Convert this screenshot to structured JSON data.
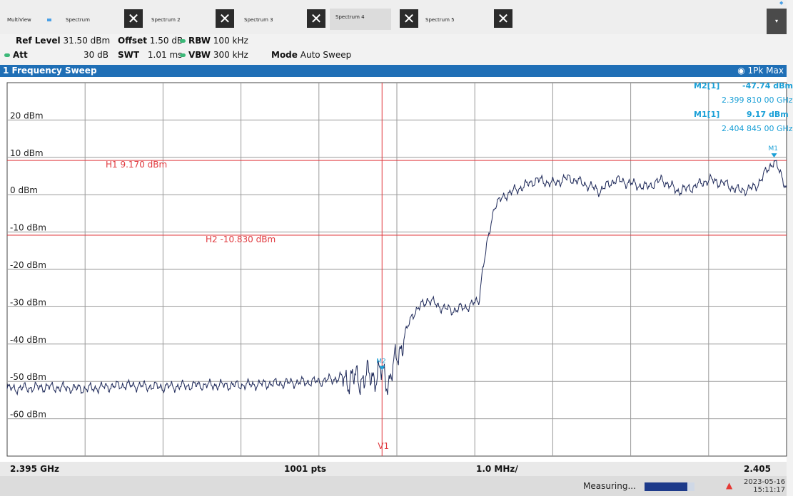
{
  "tabs": {
    "multiview": "MultiView",
    "items": [
      {
        "label": "Spectrum"
      },
      {
        "label": "Spectrum 2"
      },
      {
        "label": "Spectrum 3"
      },
      {
        "label": "Spectrum 4"
      },
      {
        "label": "Spectrum 5"
      }
    ],
    "close_glyph": "✕",
    "dropdown_glyph": "▾"
  },
  "settings": {
    "ref_level_label": "Ref Level",
    "ref_level_value": "31.50 dBm",
    "offset_label": "Offset",
    "offset_value": "1.50 dB",
    "rbw_label": "RBW",
    "rbw_value": "100 kHz",
    "att_label": "Att",
    "att_value": "30 dB",
    "swt_label": "SWT",
    "swt_value": "1.01 ms",
    "vbw_label": "VBW",
    "vbw_value": "300 kHz",
    "mode_label": "Mode",
    "mode_value": "Auto Sweep"
  },
  "window": {
    "title": "1 Frequency Sweep",
    "trace_info": "1Pk Max"
  },
  "markers": {
    "m2_label": "M2[1]",
    "m2_level": "-47.74 dBm",
    "m2_freq": "2.399 810 00 GHz",
    "m1_label": "M1[1]",
    "m1_level": "9.17 dBm",
    "m1_freq": "2.404 845 00 GHz",
    "m1_tag": "M1",
    "m2_tag": "M2",
    "v1_tag": "V1"
  },
  "lines": {
    "h1": "H1 9.170 dBm",
    "h2": "H2 -10.830 dBm"
  },
  "chart_data": {
    "type": "line",
    "x_unit": "GHz",
    "xlim": [
      2.395,
      2.405
    ],
    "ylim": [
      -70,
      30
    ],
    "yticks": [
      20,
      10,
      0,
      -10,
      -20,
      -30,
      -40,
      -50,
      -60
    ],
    "ytick_labels": [
      "20 dBm",
      "10 dBm",
      "0 dBm",
      "-10 dBm",
      "-20 dBm",
      "-30 dBm",
      "-40 dBm",
      "-50 dBm",
      "-60 dBm"
    ],
    "hlines": [
      9.17,
      -10.83
    ],
    "vline_x": 2.39981,
    "series": [
      {
        "color": "#1f2a5a",
        "x": [
          2.395,
          2.3955,
          2.396,
          2.3965,
          2.397,
          2.3975,
          2.398,
          2.3985,
          2.399,
          2.3993,
          2.3995,
          2.3997,
          2.39981,
          2.3999,
          2.40001,
          2.4002,
          2.4004,
          2.40055,
          2.4007,
          2.4009,
          2.40105,
          2.4011,
          2.40125,
          2.4014,
          2.4016,
          2.4018,
          2.402,
          2.4022,
          2.4024,
          2.4026,
          2.4028,
          2.403,
          2.4032,
          2.4034,
          2.4036,
          2.4038,
          2.404,
          2.4042,
          2.4044,
          2.4046,
          2.40484,
          2.405
        ],
        "y": [
          -52,
          -51.5,
          -52,
          -51,
          -51.5,
          -51,
          -51,
          -50.5,
          -50,
          -49,
          -49.5,
          -48.5,
          -47.74,
          -50,
          -43,
          -32,
          -28,
          -30,
          -31,
          -30,
          -28.5,
          -20,
          -3,
          0,
          2,
          4,
          3,
          4.5,
          3,
          1,
          4,
          3,
          2,
          4,
          1,
          2,
          4,
          3,
          1,
          2,
          9.17,
          2
        ]
      }
    ]
  },
  "axis": {
    "start": "2.395 GHz",
    "points": "1001 pts",
    "span": "1.0 MHz/",
    "stop": "2.405 GHz"
  },
  "status": {
    "text": "Measuring...",
    "progress_fraction": 0.85,
    "date": "2023-05-16",
    "time": "15:11:17"
  },
  "colors": {
    "accent": "#1f6fb6",
    "marker": "#1ba0d7",
    "limit_line": "#e0393e",
    "trace": "#1f2a5a"
  }
}
